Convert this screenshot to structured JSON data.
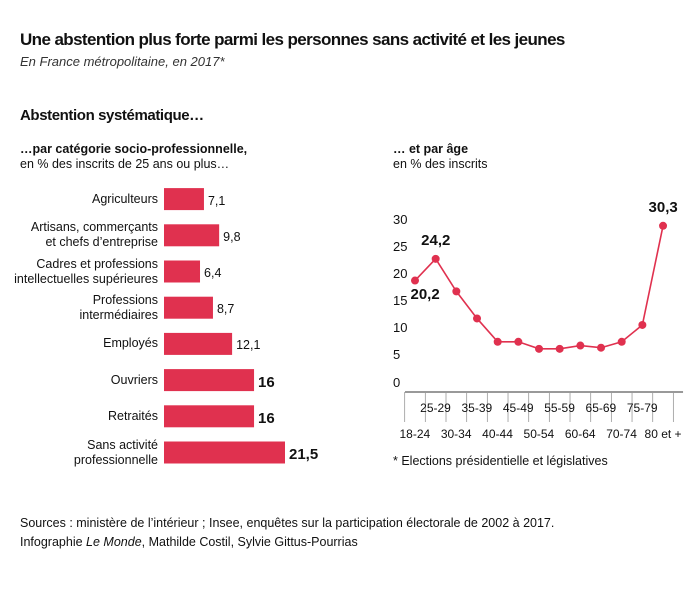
{
  "title": "Une abstention plus forte parmi les personnes sans activité et les jeunes",
  "subtitle": "En France métropolitaine, en 2017*",
  "section_title": "Abstention systématique…",
  "footnote": "* Elections présidentielle et législatives",
  "sources": "Sources : ministère de l’intérieur ; Insee, enquêtes sur la participation électorale de 2002 à 2017.",
  "credit": {
    "prefix": "Infographie",
    "publication": "Le Monde",
    "authors": ", Mathilde Costil, Sylvie Gittus-Pourrias"
  },
  "chart_data": [
    {
      "type": "hbar",
      "title": "…par catégorie socio-professionnelle,",
      "subtitle": "en % des inscrits de 25 ans ou plus…",
      "categories": [
        "Agriculteurs",
        "Artisans, commerçants\net chefs d’entreprise",
        "Cadres et professions\nintellectuelles supérieures",
        "Professions\nintermédiaires",
        "Employés",
        "Ouvriers",
        "Retraités",
        "Sans activité\nprofessionnelle"
      ],
      "values": [
        7.1,
        9.8,
        6.4,
        8.7,
        12.1,
        16,
        16,
        21.5
      ],
      "value_labels": [
        "7,1",
        "9,8",
        "6,4",
        "8,7",
        "12,1",
        "16",
        "16",
        "21,5"
      ],
      "color": "#e0314f"
    },
    {
      "type": "line",
      "title": "… et par âge",
      "subtitle": "en % des inscrits",
      "categories": [
        "18-24",
        "25-29",
        "30-34",
        "35-39",
        "40-44",
        "45-49",
        "50-54",
        "55-59",
        "60-64",
        "65-69",
        "70-74",
        "75-79",
        "80 et +"
      ],
      "values": [
        20.2,
        24.2,
        18.2,
        13.2,
        8.9,
        8.9,
        7.6,
        7.6,
        8.2,
        7.8,
        8.9,
        12.0,
        30.3
      ],
      "value_labels": [
        "20,2",
        "24,2",
        null,
        null,
        null,
        null,
        null,
        null,
        null,
        null,
        null,
        null,
        "30,3"
      ],
      "color": "#e0314f",
      "ylim": [
        0,
        31
      ],
      "yticks": [
        0,
        5,
        10,
        15,
        20,
        25,
        30
      ]
    }
  ]
}
